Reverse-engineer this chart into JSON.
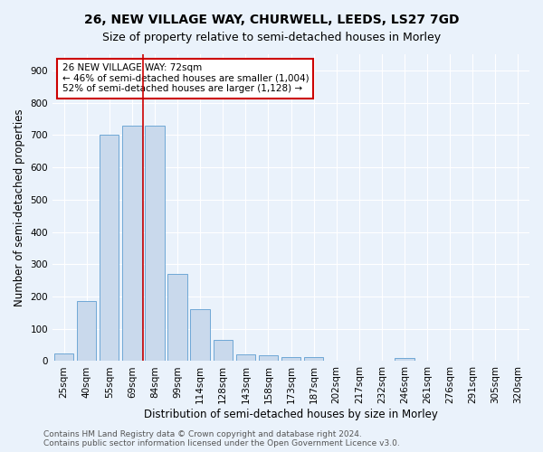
{
  "title_line1": "26, NEW VILLAGE WAY, CHURWELL, LEEDS, LS27 7GD",
  "title_line2": "Size of property relative to semi-detached houses in Morley",
  "xlabel": "Distribution of semi-detached houses by size in Morley",
  "ylabel": "Number of semi-detached properties",
  "footer_line1": "Contains HM Land Registry data © Crown copyright and database right 2024.",
  "footer_line2": "Contains public sector information licensed under the Open Government Licence v3.0.",
  "categories": [
    "25sqm",
    "40sqm",
    "55sqm",
    "69sqm",
    "84sqm",
    "99sqm",
    "114sqm",
    "128sqm",
    "143sqm",
    "158sqm",
    "173sqm",
    "187sqm",
    "202sqm",
    "217sqm",
    "232sqm",
    "246sqm",
    "261sqm",
    "276sqm",
    "291sqm",
    "305sqm",
    "320sqm"
  ],
  "values": [
    25,
    185,
    700,
    730,
    730,
    270,
    160,
    65,
    22,
    18,
    13,
    13,
    0,
    0,
    0,
    10,
    0,
    0,
    0,
    0,
    0
  ],
  "bar_color": "#c9d9ec",
  "bar_edge_color": "#6fa8d6",
  "vline_color": "#cc0000",
  "vline_x": 3.5,
  "annotation_text": "26 NEW VILLAGE WAY: 72sqm\n← 46% of semi-detached houses are smaller (1,004)\n52% of semi-detached houses are larger (1,128) →",
  "annotation_box_facecolor": "white",
  "annotation_box_edgecolor": "#cc0000",
  "ylim": [
    0,
    950
  ],
  "yticks": [
    0,
    100,
    200,
    300,
    400,
    500,
    600,
    700,
    800,
    900
  ],
  "background_color": "#eaf2fb",
  "grid_color": "white",
  "title_fontsize": 10,
  "subtitle_fontsize": 9,
  "axis_label_fontsize": 8.5,
  "tick_fontsize": 7.5,
  "annotation_fontsize": 7.5,
  "footer_fontsize": 6.5
}
